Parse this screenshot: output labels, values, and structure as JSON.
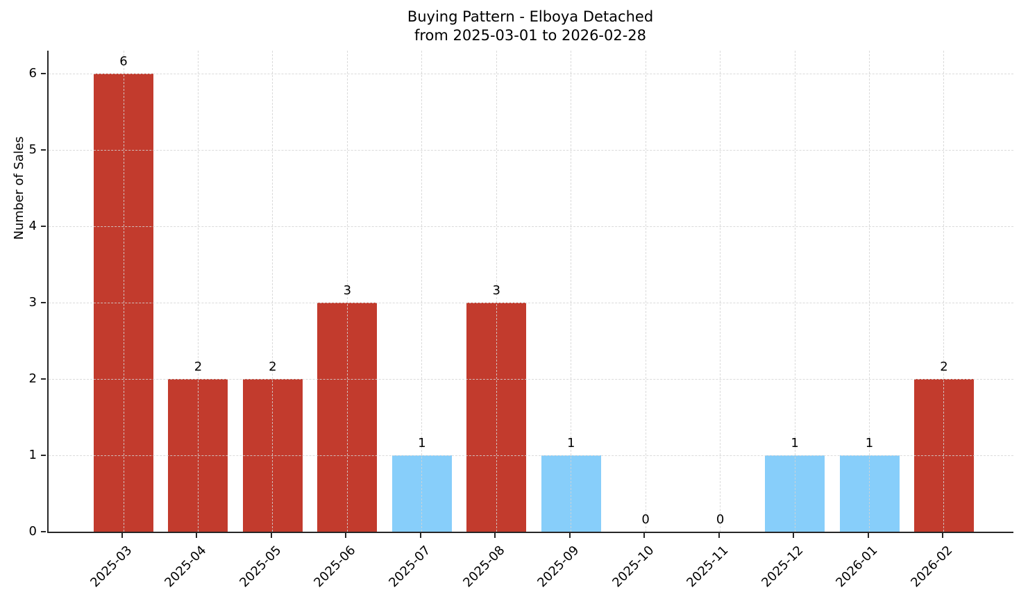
{
  "chart_data": {
    "type": "bar",
    "title_line1": "Buying Pattern - Elboya Detached",
    "title_line2": "from 2025-03-01 to 2026-02-28",
    "ylabel": "Number of Sales",
    "xlabel": "",
    "categories": [
      "2025-03",
      "2025-04",
      "2025-05",
      "2025-06",
      "2025-07",
      "2025-08",
      "2025-09",
      "2025-10",
      "2025-11",
      "2025-12",
      "2026-01",
      "2026-02"
    ],
    "values": [
      6,
      2,
      2,
      3,
      1,
      3,
      1,
      0,
      0,
      1,
      1,
      2
    ],
    "bar_colors": [
      "#c23b2d",
      "#c23b2d",
      "#c23b2d",
      "#c23b2d",
      "#87cefa",
      "#c23b2d",
      "#87cefa",
      "#87cefa",
      "#87cefa",
      "#87cefa",
      "#87cefa",
      "#c23b2d"
    ],
    "yticks": [
      0,
      1,
      2,
      3,
      4,
      5,
      6
    ],
    "ylim": [
      0,
      6.3
    ],
    "grid": true,
    "legend_position": "none"
  },
  "colors": {
    "bar_red": "#c23b2d",
    "bar_blue": "#87cefa",
    "axis": "#262626",
    "grid": "#d4d4d4",
    "text": "#000000",
    "background": "#ffffff"
  }
}
